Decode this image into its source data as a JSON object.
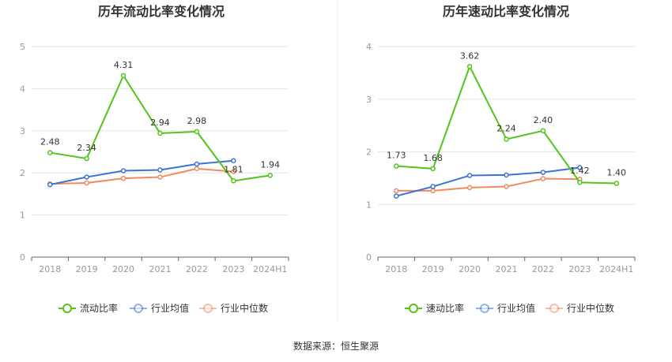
{
  "source_text": "数据来源：恒生聚源",
  "chart_data": [
    {
      "type": "line",
      "title": "历年流动比率变化情况",
      "categories": [
        "2018",
        "2019",
        "2020",
        "2021",
        "2022",
        "2023",
        "2024H1"
      ],
      "ylim": [
        0,
        5
      ],
      "yticks": [
        "0",
        "1",
        "2",
        "3",
        "4",
        "5"
      ],
      "grid": true,
      "legend_position": "bottom",
      "series": [
        {
          "name": "流动比率",
          "color": "#52c41a",
          "values": [
            2.48,
            2.34,
            4.31,
            2.94,
            2.98,
            1.81,
            1.94
          ],
          "labels": [
            "2.48",
            "2.34",
            "4.31",
            "2.94",
            "2.98",
            "1.81",
            "1.94"
          ]
        },
        {
          "name": "行业均值",
          "color": "#3d72d6",
          "values": [
            1.72,
            1.9,
            2.05,
            2.07,
            2.21,
            2.29,
            null
          ]
        },
        {
          "name": "行业中位数",
          "color": "#f08b5e",
          "values": [
            1.74,
            1.76,
            1.87,
            1.9,
            2.1,
            2.03,
            null
          ]
        }
      ]
    },
    {
      "type": "line",
      "title": "历年速动比率变化情况",
      "categories": [
        "2018",
        "2019",
        "2020",
        "2021",
        "2022",
        "2023",
        "2024H1"
      ],
      "ylim": [
        0,
        4
      ],
      "yticks": [
        "0",
        "1",
        "2",
        "3",
        "4"
      ],
      "grid": true,
      "legend_position": "bottom",
      "series": [
        {
          "name": "速动比率",
          "color": "#52c41a",
          "values": [
            1.73,
            1.68,
            3.62,
            2.24,
            2.4,
            1.42,
            1.4
          ],
          "labels": [
            "1.73",
            "1.68",
            "3.62",
            "2.24",
            "2.40",
            "1.42",
            "1.40"
          ]
        },
        {
          "name": "行业均值",
          "color": "#3d72d6",
          "values": [
            1.16,
            1.34,
            1.55,
            1.56,
            1.61,
            1.7,
            null
          ]
        },
        {
          "name": "行业中位数",
          "color": "#f08b5e",
          "values": [
            1.26,
            1.26,
            1.32,
            1.34,
            1.49,
            1.48,
            null
          ]
        }
      ]
    }
  ]
}
